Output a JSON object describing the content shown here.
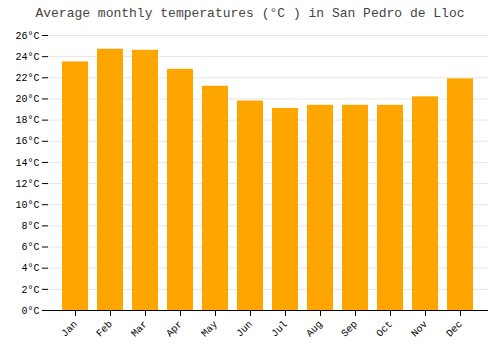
{
  "chart_data": {
    "type": "bar",
    "title": "Average monthly temperatures (°C ) in San Pedro de Lloc",
    "categories": [
      "Jan",
      "Feb",
      "Mar",
      "Apr",
      "May",
      "Jun",
      "Jul",
      "Aug",
      "Sep",
      "Oct",
      "Nov",
      "Dec"
    ],
    "values": [
      23.5,
      24.7,
      24.6,
      22.8,
      21.2,
      19.8,
      19.1,
      19.4,
      19.4,
      19.4,
      20.2,
      21.9
    ],
    "color": "#FFA500",
    "ylim": [
      0,
      26
    ],
    "yticks": [
      {
        "value": 0,
        "label": "0°C"
      },
      {
        "value": 2,
        "label": "2°C"
      },
      {
        "value": 4,
        "label": "4°C"
      },
      {
        "value": 6,
        "label": "6°C"
      },
      {
        "value": 8,
        "label": "8°C"
      },
      {
        "value": 10,
        "label": "10°C"
      },
      {
        "value": 12,
        "label": "12°C"
      },
      {
        "value": 14,
        "label": "14°C"
      },
      {
        "value": 16,
        "label": "16°C"
      },
      {
        "value": 18,
        "label": "18°C"
      },
      {
        "value": 20,
        "label": "20°C"
      },
      {
        "value": 22,
        "label": "22°C"
      },
      {
        "value": 24,
        "label": "24°C"
      },
      {
        "value": 26,
        "label": "26°C"
      }
    ],
    "grid": true
  }
}
